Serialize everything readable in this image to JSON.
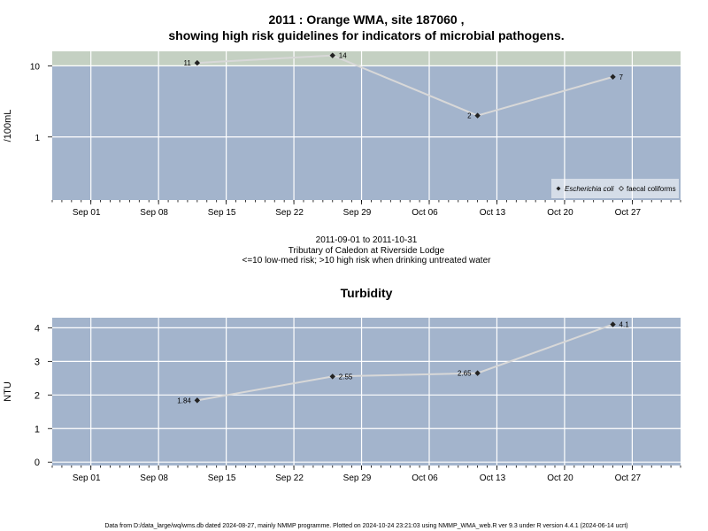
{
  "colors": {
    "plot_bg": "#a3b4cc",
    "high_risk_band": "#c4d0c2",
    "grid": "#ffffff",
    "line": "#d8d8d8",
    "point": "#222222"
  },
  "top": {
    "title_line1": "2011 : Orange WMA, site 187060 ,",
    "title_line2": "showing high risk guidelines for indicators of microbial pathogens.",
    "subtitle_line1": "2011-09-01 to 2011-10-31",
    "subtitle_line2": "Tributary of Caledon at Riverside Lodge",
    "subtitle_line3": "<=10 low-med risk; >10 high risk when drinking untreated water"
  },
  "bottom": {
    "title": "Turbidity"
  },
  "footer": "Data from D:/data_large/wq/wms.db dated 2024-08-27, mainly NMMP programme. Plotted on 2024-10-24 23:21:03 using NMMP_WMA_web.R ver 9.3 under R version 4.4.1 (2024-06-14 ucrt)",
  "chart_data": [
    {
      "type": "line",
      "title": "2011 : Orange WMA, site 187060 , showing high risk guidelines for indicators of microbial pathogens.",
      "ylabel": "/100mL",
      "xlabel": "",
      "y_scale": "log",
      "xlim": [
        "2011-08-28",
        "2011-11-01"
      ],
      "ylim": [
        0.13,
        16
      ],
      "y_ticks": [
        1,
        10
      ],
      "y_tick_labels": [
        "1",
        "10"
      ],
      "x_ticks": [
        "2011-09-01",
        "2011-09-08",
        "2011-09-15",
        "2011-09-22",
        "2011-09-29",
        "2011-10-06",
        "2011-10-13",
        "2011-10-20",
        "2011-10-27"
      ],
      "x_tick_labels": [
        "Sep 01",
        "Sep 08",
        "Sep 15",
        "Sep 22",
        "Sep 29",
        "Oct 06",
        "Oct 13",
        "Oct 20",
        "Oct 27"
      ],
      "high_risk_threshold": 10,
      "grid": true,
      "legend_position": "bottom-right",
      "legend": [
        "Escherichia coli",
        "faecal coliforms"
      ],
      "series": [
        {
          "name": "Escherichia coli",
          "x": [
            "2011-09-12",
            "2011-09-26",
            "2011-10-11",
            "2011-10-25"
          ],
          "values": [
            11,
            14,
            2,
            7
          ],
          "labels": [
            "11",
            "14",
            "2",
            "7"
          ]
        }
      ]
    },
    {
      "type": "line",
      "title": "Turbidity",
      "ylabel": "NTU",
      "xlabel": "",
      "xlim": [
        "2011-08-28",
        "2011-11-01"
      ],
      "ylim": [
        -0.1,
        4.3
      ],
      "y_ticks": [
        0,
        1,
        2,
        3,
        4
      ],
      "y_tick_labels": [
        "0",
        "1",
        "2",
        "3",
        "4"
      ],
      "x_ticks": [
        "2011-09-01",
        "2011-09-08",
        "2011-09-15",
        "2011-09-22",
        "2011-09-29",
        "2011-10-06",
        "2011-10-13",
        "2011-10-20",
        "2011-10-27"
      ],
      "x_tick_labels": [
        "Sep 01",
        "Sep 08",
        "Sep 15",
        "Sep 22",
        "Sep 29",
        "Oct 06",
        "Oct 13",
        "Oct 20",
        "Oct 27"
      ],
      "grid": true,
      "series": [
        {
          "x": [
            "2011-09-12",
            "2011-09-26",
            "2011-10-11",
            "2011-10-25"
          ],
          "values": [
            1.84,
            2.55,
            2.65,
            4.1
          ],
          "labels": [
            "1.84",
            "2.55",
            "2.65",
            "4.1"
          ]
        }
      ]
    }
  ]
}
